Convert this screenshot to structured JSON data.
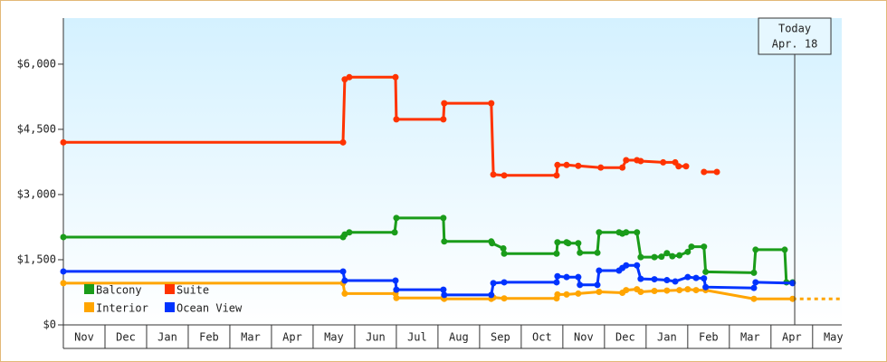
{
  "chart_data": {
    "type": "line",
    "xlim": [
      0,
      18.7
    ],
    "xticks": [
      {
        "value": 0.5,
        "label": "Nov"
      },
      {
        "value": 1.5,
        "label": "Dec"
      },
      {
        "value": 2.5,
        "label": "Jan"
      },
      {
        "value": 3.5,
        "label": "Feb"
      },
      {
        "value": 4.5,
        "label": "Mar"
      },
      {
        "value": 5.5,
        "label": "Apr"
      },
      {
        "value": 6.5,
        "label": "May"
      },
      {
        "value": 7.5,
        "label": "Jun"
      },
      {
        "value": 8.5,
        "label": "Jul"
      },
      {
        "value": 9.5,
        "label": "Aug"
      },
      {
        "value": 10.5,
        "label": "Sep"
      },
      {
        "value": 11.5,
        "label": "Oct"
      },
      {
        "value": 12.5,
        "label": "Nov"
      },
      {
        "value": 13.5,
        "label": "Dec"
      },
      {
        "value": 14.5,
        "label": "Jan"
      },
      {
        "value": 15.5,
        "label": "Feb"
      },
      {
        "value": 16.5,
        "label": "Mar"
      },
      {
        "value": 17.5,
        "label": "Apr"
      },
      {
        "value": 18.5,
        "label": "May"
      }
    ],
    "ylim": [
      0,
      7060
    ],
    "yticks": [
      {
        "value": 0,
        "label": "$0"
      },
      {
        "value": 1500,
        "label": "$1,500"
      },
      {
        "value": 3000,
        "label": "$3,000"
      },
      {
        "value": 4500,
        "label": "$4,500"
      },
      {
        "value": 6000,
        "label": "$6,000"
      }
    ],
    "legend": "lower left",
    "today_marker": {
      "x": 17.57,
      "lines": [
        "Today",
        "Apr. 18"
      ]
    },
    "projected_series": "Interior",
    "series": [
      {
        "name": "Balcony",
        "color": "#1a9c1a",
        "x": [
          0,
          6.72,
          6.76,
          6.87,
          7.96,
          8.0,
          9.13,
          9.15,
          10.28,
          10.3,
          10.57,
          10.59,
          11.85,
          11.87,
          12.09,
          12.13,
          12.37,
          12.41,
          12.83,
          12.87,
          13.35,
          13.43,
          13.52,
          13.78,
          13.87,
          14.2,
          14.37,
          14.5,
          14.63,
          14.8,
          15.0,
          15.09,
          15.39,
          15.43,
          16.59,
          16.63,
          17.33,
          17.37,
          17.52
        ],
        "values": [
          2020,
          2020,
          2080,
          2130,
          2130,
          2460,
          2460,
          1920,
          1920,
          1880,
          1760,
          1640,
          1640,
          1900,
          1900,
          1880,
          1880,
          1660,
          1660,
          2130,
          2130,
          2100,
          2130,
          2130,
          1560,
          1560,
          1570,
          1650,
          1580,
          1600,
          1680,
          1800,
          1800,
          1220,
          1200,
          1730,
          1730,
          980,
          980
        ]
      },
      {
        "name": "Suite",
        "color": "#ff3300",
        "x": [
          0,
          6.72,
          6.76,
          6.87,
          7.98,
          8.0,
          9.13,
          9.15,
          10.28,
          10.33,
          10.59,
          11.85,
          11.87,
          12.09,
          12.37,
          12.91,
          13.43,
          13.52,
          13.78,
          13.87,
          14.41,
          14.7,
          14.78,
          14.96,
          15.2,
          15.39,
          15.7
        ],
        "values": [
          4200,
          4200,
          5650,
          5700,
          5700,
          4730,
          4730,
          5100,
          5100,
          3460,
          3440,
          3440,
          3680,
          3680,
          3660,
          3620,
          3620,
          3790,
          3790,
          3770,
          3740,
          3740,
          3650,
          3650,
          null,
          3520,
          3520
        ]
      },
      {
        "name": "Interior",
        "color": "#ffa500",
        "x": [
          0,
          6.72,
          6.76,
          7.98,
          8.0,
          9.13,
          9.15,
          10.28,
          10.33,
          10.59,
          11.85,
          11.87,
          12.09,
          12.37,
          12.87,
          13.43,
          13.52,
          13.78,
          13.87,
          14.2,
          14.5,
          14.8,
          15.0,
          15.2,
          15.43,
          16.59,
          17.52
        ],
        "values": [
          960,
          960,
          720,
          720,
          620,
          620,
          600,
          600,
          630,
          610,
          610,
          700,
          700,
          720,
          760,
          740,
          800,
          820,
          760,
          780,
          790,
          800,
          820,
          800,
          800,
          600,
          600
        ]
      },
      {
        "name": "Ocean View",
        "color": "#0033ff",
        "x": [
          0,
          6.72,
          6.76,
          7.98,
          8.0,
          9.13,
          9.15,
          10.28,
          10.33,
          10.59,
          11.85,
          11.87,
          12.09,
          12.37,
          12.41,
          12.83,
          12.87,
          13.35,
          13.43,
          13.52,
          13.78,
          13.87,
          14.2,
          14.5,
          14.7,
          15.0,
          15.2,
          15.39,
          15.43,
          16.59,
          16.63,
          17.52
        ],
        "values": [
          1230,
          1230,
          1020,
          1020,
          810,
          810,
          690,
          690,
          960,
          980,
          980,
          1120,
          1100,
          1100,
          920,
          920,
          1250,
          1250,
          1310,
          1370,
          1370,
          1060,
          1050,
          1030,
          1000,
          1100,
          1080,
          1070,
          870,
          850,
          980,
          960
        ]
      }
    ]
  }
}
